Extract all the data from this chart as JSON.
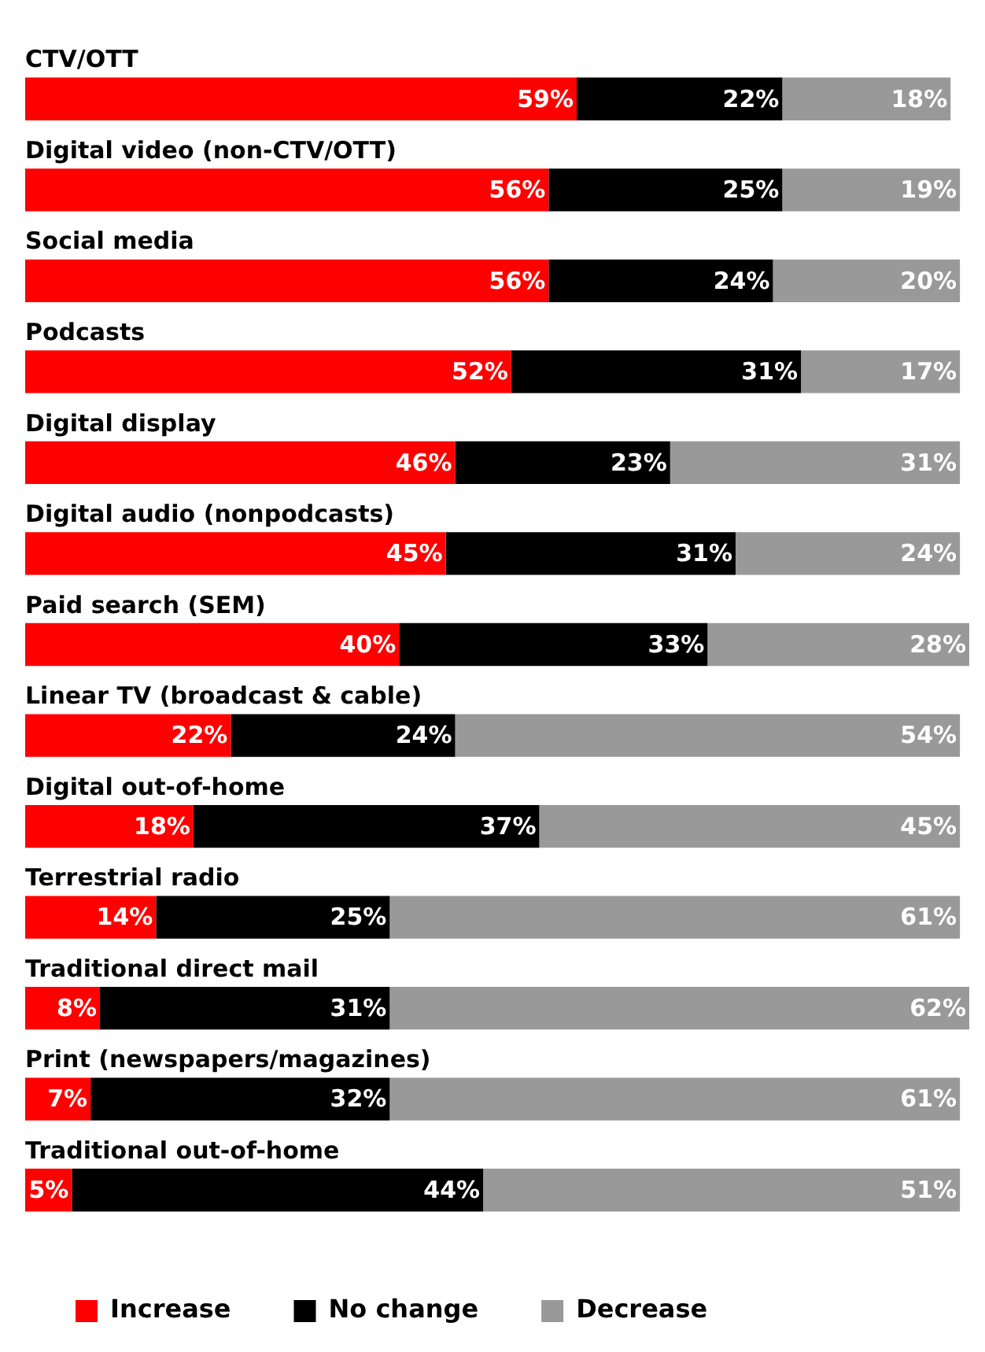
{
  "chart_data": {
    "type": "bar",
    "orientation": "horizontal",
    "stacked": true,
    "tick_labels": false,
    "legend": "bottom left",
    "categories": [
      "CTV/OTT",
      "Digital video (non-CTV/OTT)",
      "Social media",
      "Podcasts",
      "Digital display",
      "Digital audio (nonpodcasts)",
      "Paid search (SEM)",
      "Linear TV (broadcast & cable)",
      "Digital out-of-home",
      "Terrestrial radio",
      "Traditional direct mail",
      "Print (newspapers/magazines)",
      "Traditional out-of-home"
    ],
    "series": [
      {
        "name": "Increase",
        "color": "#ff0000",
        "values": [
          59,
          56,
          56,
          52,
          46,
          45,
          40,
          22,
          18,
          14,
          8,
          7,
          5
        ],
        "value_labels": [
          "59%",
          "56%",
          "56%",
          "52%",
          "46%",
          "45%",
          "40%",
          "22%",
          "18%",
          "14%",
          "8%",
          "7%",
          "5%"
        ]
      },
      {
        "name": "No change",
        "color": "#000000",
        "values": [
          22,
          25,
          24,
          31,
          23,
          31,
          33,
          24,
          37,
          25,
          31,
          32,
          44
        ],
        "value_labels": [
          "22%",
          "25%",
          "24%",
          "31%",
          "23%",
          "31%",
          "33%",
          "24%",
          "37%",
          "25%",
          "31%",
          "32%",
          "44%"
        ]
      },
      {
        "name": "Decrease",
        "color": "#999999",
        "values": [
          18,
          19,
          20,
          17,
          31,
          24,
          28,
          54,
          45,
          61,
          62,
          61,
          51
        ],
        "value_labels": [
          "18%",
          "19%",
          "20%",
          "17%",
          "31%",
          "24%",
          "28%",
          "54%",
          "45%",
          "61%",
          "62%",
          "61%",
          "51%"
        ]
      }
    ]
  }
}
